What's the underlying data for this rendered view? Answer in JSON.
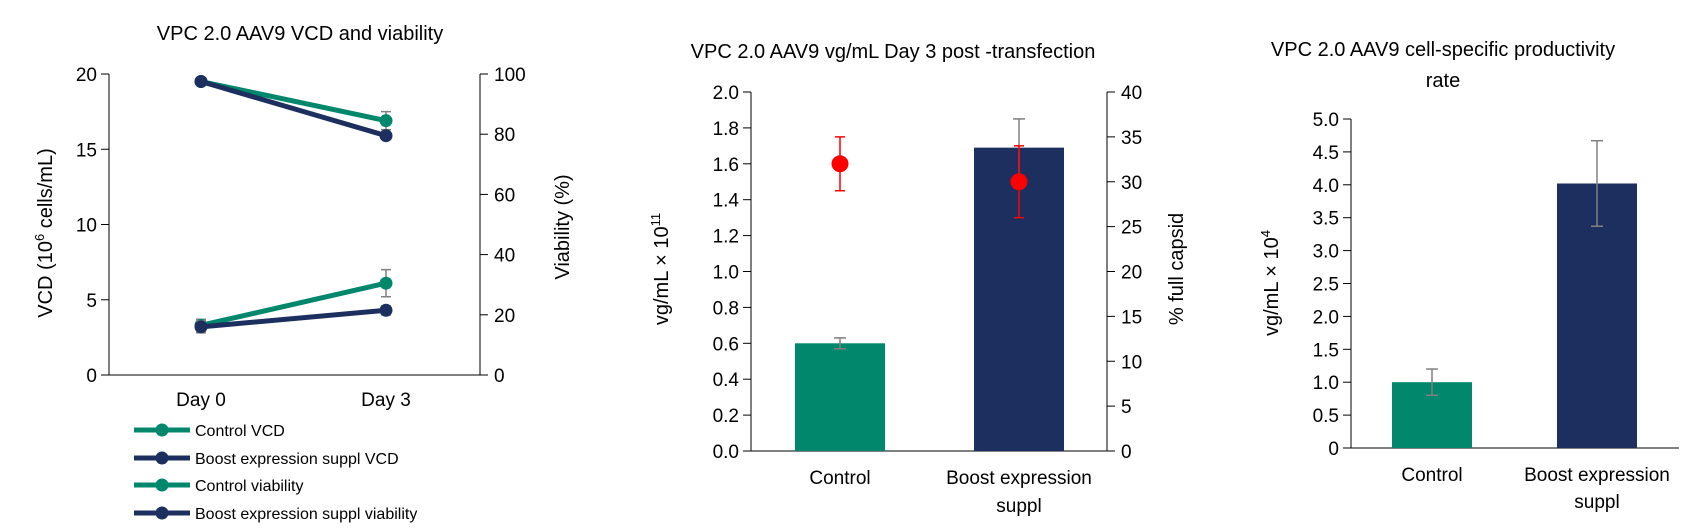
{
  "colors": {
    "green": "#00876c",
    "navy": "#1c2f5f",
    "red": "#ff0000",
    "axis": "#000000",
    "errbar": "#808080"
  },
  "chart_data": [
    {
      "type": "line",
      "title": "VPC 2.0 AAV9 VCD and viability",
      "categories": [
        "Day 0",
        "Day 3"
      ],
      "ylabel_prefix": "VCD (10",
      "ylabel_sup": "6",
      "ylabel_suffix": " cells/mL)",
      "y2label": "Viability (%)",
      "ylim": [
        0,
        20
      ],
      "y2lim": [
        0,
        100
      ],
      "yticks": [
        "0",
        "5",
        "10",
        "15",
        "20"
      ],
      "y2ticks": [
        "0",
        "20",
        "40",
        "60",
        "80",
        "100"
      ],
      "legend_position": "bottom",
      "series": [
        {
          "name": "Control VCD",
          "axis": "left",
          "color": "green",
          "values": [
            3.3,
            6.1
          ],
          "errors": [
            0.4,
            0.9
          ]
        },
        {
          "name": "Boost expression suppl VCD",
          "axis": "left",
          "color": "navy",
          "values": [
            3.2,
            4.3
          ],
          "errors": [
            0.4,
            0.3
          ]
        },
        {
          "name": "Control viability",
          "axis": "right",
          "color": "green",
          "values": [
            97.5,
            84.5
          ],
          "errors": [
            1.0,
            3.0
          ]
        },
        {
          "name": "Boost expression suppl viability",
          "axis": "right",
          "color": "navy",
          "values": [
            97.5,
            79.5
          ],
          "errors": [
            1.0,
            1.0
          ]
        }
      ]
    },
    {
      "type": "bar",
      "title": "VPC 2.0 AAV9 vg/mL Day 3 post -transfection",
      "categories": [
        "Control",
        "Boost expression suppl"
      ],
      "category_lines": [
        [
          "Control"
        ],
        [
          "Boost expression",
          "suppl"
        ]
      ],
      "ylabel_prefix": "vg/mL × 10",
      "ylabel_sup": "11",
      "y2label": "% full capsid",
      "ylim": [
        0,
        2
      ],
      "y2lim": [
        0,
        40
      ],
      "yticks": [
        "0.0",
        "0.2",
        "0.4",
        "0.6",
        "0.8",
        "1.0",
        "1.2",
        "1.4",
        "1.6",
        "1.8",
        "2.0"
      ],
      "y2ticks": [
        "0",
        "5",
        "10",
        "15",
        "20",
        "25",
        "30",
        "35",
        "40"
      ],
      "bars": {
        "values": [
          0.6,
          1.69
        ],
        "errors": [
          0.03,
          0.16
        ],
        "colors": [
          "green",
          "navy"
        ]
      },
      "points": {
        "axis": "right",
        "values": [
          32,
          30
        ],
        "errors": [
          3,
          4
        ],
        "color": "red"
      }
    },
    {
      "type": "bar",
      "title_lines": [
        "VPC 2.0 AAV9 cell-specific productivity",
        "rate"
      ],
      "categories": [
        "Control",
        "Boost expression suppl"
      ],
      "category_lines": [
        [
          "Control"
        ],
        [
          "Boost expression",
          "suppl"
        ]
      ],
      "ylabel_prefix": "vg/mL × 10",
      "ylabel_sup": "4",
      "ylim": [
        0,
        5
      ],
      "yticks": [
        "0",
        "0.5",
        "1.0",
        "1.5",
        "2.0",
        "2.5",
        "3.0",
        "3.5",
        "4.0",
        "4.5",
        "5.0"
      ],
      "bars": {
        "values": [
          1.0,
          4.02
        ],
        "errors": [
          0.2,
          0.65
        ],
        "colors": [
          "green",
          "navy"
        ]
      }
    }
  ]
}
